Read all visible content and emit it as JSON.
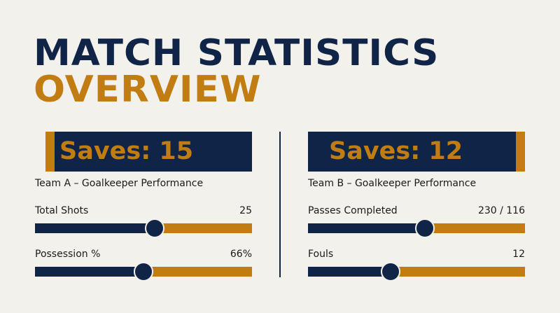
{
  "header": {
    "title": "MATCH STATISTICS",
    "subtitle": "OVERVIEW"
  },
  "panels": [
    {
      "banner": "Saves: 15",
      "caption": "Team A – Goalkeeper Performance",
      "stats": [
        {
          "label": "Total Shots",
          "value": "25",
          "position": 55
        },
        {
          "label": "Possession %",
          "value": "66%",
          "position": 50
        }
      ]
    },
    {
      "banner": "Saves: 12",
      "caption": "Team B – Goalkeeper Performance",
      "stats": [
        {
          "label": "Passes Completed",
          "value": "230 / 116",
          "position": 54
        },
        {
          "label": "Fouls",
          "value": "12",
          "position": 38
        }
      ]
    }
  ]
}
